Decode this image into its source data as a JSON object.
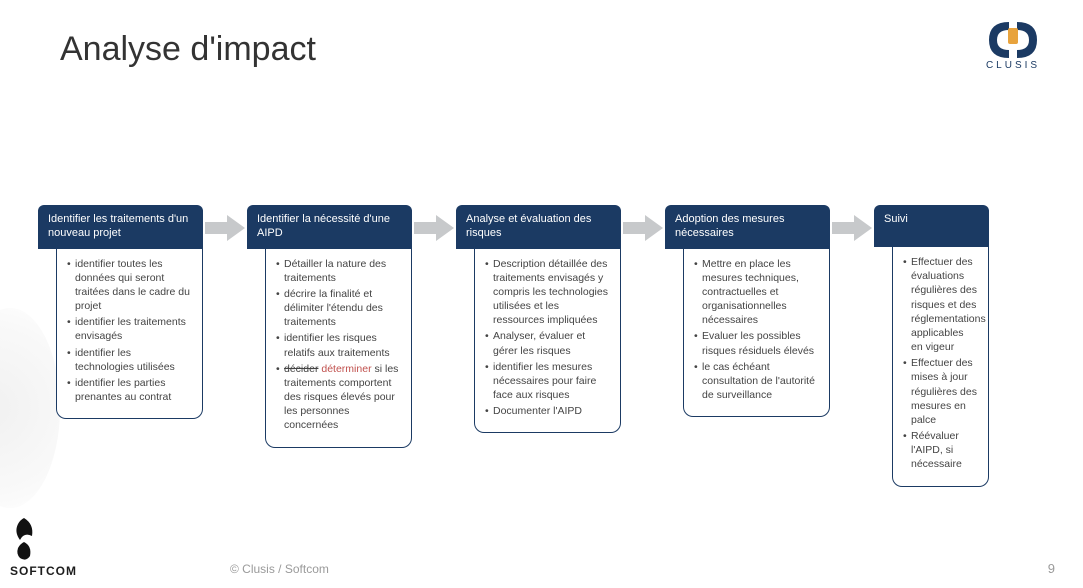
{
  "title": "Analyse d'impact",
  "top_logo_brand": "CLUSIS",
  "bottom_logo_brand": "SOFTCOM",
  "footer_credit": "© Clusis / Softcom",
  "page_number": "9",
  "colors": {
    "header_bg": "#1b3a63",
    "arrow_fill": "#c7c9cb",
    "replace": "#c0504d"
  },
  "steps": [
    {
      "header": "Identifier les traitements d'un nouveau projet",
      "bullets": [
        {
          "text": "identifier toutes les données qui seront traitées dans le cadre du projet"
        },
        {
          "text": "identifier les traitements envisagés"
        },
        {
          "text": "identifier les technologies utilisées"
        },
        {
          "text": "identifier les parties prenantes au contrat"
        }
      ]
    },
    {
      "header": "Identifier la nécessité d'une AIPD",
      "bullets": [
        {
          "text": "Détailler la nature des traitements"
        },
        {
          "text": "décrire la finalité et délimiter l'étendu des traitements"
        },
        {
          "text": "identifier les risques relatifs aux traitements"
        },
        {
          "strike": "décider",
          "replace": "déterminer",
          "rest": " si les traitements comportent des risques élevés pour les personnes concernées"
        }
      ]
    },
    {
      "header": "Analyse et évaluation des risques",
      "bullets": [
        {
          "text": "Description détaillée des traitements envisagés y compris les technologies utilisées et les ressources impliquées"
        },
        {
          "text": "Analyser, évaluer et gérer les risques"
        },
        {
          "text": "identifier les mesures nécessaires pour faire face aux risques"
        },
        {
          "text": "Documenter l'AIPD"
        }
      ]
    },
    {
      "header": "Adoption des mesures nécessaires",
      "bullets": [
        {
          "text": "Mettre en place les mesures techniques, contractuelles et organisationnelles nécessaires"
        },
        {
          "text": "Evaluer les possibles risques résiduels élevés"
        },
        {
          "text": "le cas échéant consultation de l'autorité de surveillance"
        }
      ]
    },
    {
      "header": "Suivi",
      "bullets": [
        {
          "text": "Effectuer des évaluations régulières des risques et des réglementations applicables en vigeur"
        },
        {
          "text": "Effectuer des mises à jour régulières des mesures en palce"
        },
        {
          "text": "Réévaluer l'AIPD, si nécessaire"
        }
      ]
    }
  ]
}
